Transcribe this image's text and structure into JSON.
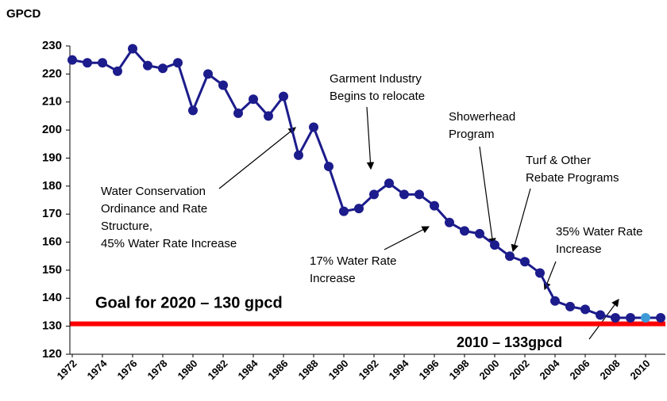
{
  "chart_data": {
    "type": "line",
    "y_axis_label": "GPCD",
    "categories": [
      "1972",
      null,
      "1974",
      null,
      "1976",
      null,
      "1978",
      null,
      "1980",
      null,
      "1982",
      null,
      "1984",
      null,
      "1986",
      null,
      "1988",
      null,
      "1990",
      null,
      "1992",
      null,
      "1994",
      null,
      "1996",
      null,
      "1998",
      null,
      "2000",
      null,
      "2002",
      null,
      "2004",
      null,
      "2006",
      null,
      "2008",
      null,
      "2010",
      null
    ],
    "series": [
      {
        "name": "GPCD",
        "color": "#1c1c8c",
        "values": [
          225,
          224,
          224,
          221,
          229,
          223,
          222,
          224,
          207,
          220,
          216,
          206,
          211,
          205,
          212,
          191,
          201,
          187,
          171,
          172,
          177,
          181,
          177,
          177,
          173,
          167,
          164,
          163,
          159,
          155,
          153,
          149,
          139,
          137,
          136,
          134,
          133,
          133,
          133,
          133
        ]
      }
    ],
    "highlight": {
      "category": "2010",
      "color": "#3d9ad6"
    },
    "ylim": [
      120,
      230
    ],
    "yticks": [
      120,
      130,
      140,
      150,
      160,
      170,
      180,
      190,
      200,
      210,
      220,
      230
    ],
    "goal_line": {
      "value": 130,
      "label": "Goal for 2020 – 130 gpcd",
      "color": "#ff0000"
    },
    "callout": "2010 – 133gpcd",
    "annotations": [
      [
        "Garment Industry",
        "Begins to relocate"
      ],
      [
        "Showerhead",
        "Program"
      ],
      [
        "Turf & Other",
        "Rebate Programs"
      ],
      [
        "35% Water Rate",
        "Increase"
      ],
      [
        "Water Conservation",
        "Ordinance and Rate",
        "Structure,",
        "45% Water Rate Increase"
      ],
      [
        "17% Water Rate",
        "Increase"
      ]
    ]
  }
}
